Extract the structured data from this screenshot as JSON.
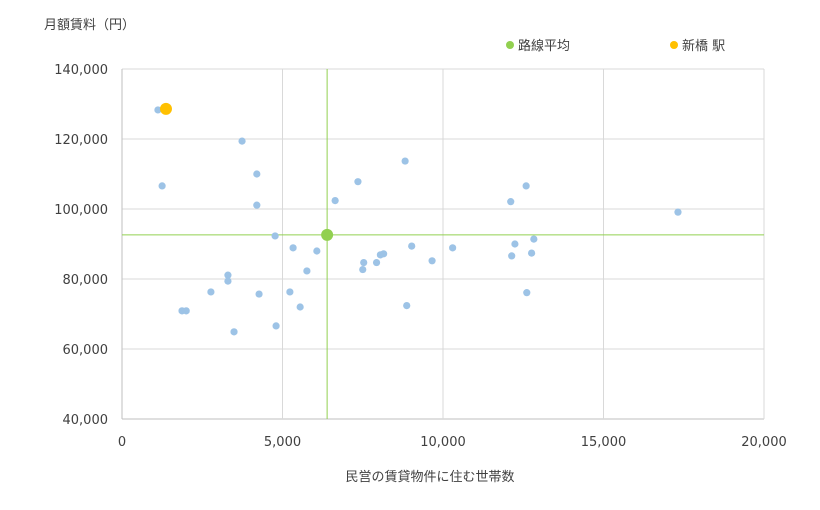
{
  "chart_data": {
    "type": "scatter",
    "title": "",
    "ylabel": "月額賃料（円）",
    "xlabel": "民営の賃貸物件に住む世帯数",
    "xlim": [
      0,
      20000
    ],
    "ylim": [
      40000,
      140000
    ],
    "xticks": [
      0,
      5000,
      10000,
      15000,
      20000
    ],
    "xtick_labels": [
      "0",
      "5,000",
      "10,000",
      "15,000",
      "20,000"
    ],
    "yticks": [
      40000,
      60000,
      80000,
      100000,
      120000,
      140000
    ],
    "ytick_labels": [
      "40,000",
      "60,000",
      "80,000",
      "100,000",
      "120,000",
      "140,000"
    ],
    "grid": true,
    "legend_position": "top-right",
    "colors": {
      "stations": "#9dc3e6",
      "average": "#92d050",
      "highlight": "#ffc000",
      "crosshair": "#92d050",
      "grid": "#d9d9d9"
    },
    "series": [
      {
        "name": "",
        "points": [
          [
            1120,
            128300
          ],
          [
            3740,
            119400
          ],
          [
            1250,
            106600
          ],
          [
            4200,
            110000
          ],
          [
            4200,
            101100
          ],
          [
            4770,
            92300
          ],
          [
            5330,
            88900
          ],
          [
            6070,
            88000
          ],
          [
            5760,
            82300
          ],
          [
            3300,
            81100
          ],
          [
            3300,
            79400
          ],
          [
            2770,
            76300
          ],
          [
            4270,
            75700
          ],
          [
            5230,
            76300
          ],
          [
            5550,
            72000
          ],
          [
            1870,
            70900
          ],
          [
            2000,
            70900
          ],
          [
            3490,
            64900
          ],
          [
            4800,
            66600
          ],
          [
            6640,
            102400
          ],
          [
            7350,
            107800
          ],
          [
            8820,
            113700
          ],
          [
            9025,
            89400
          ],
          [
            10300,
            88900
          ],
          [
            7530,
            84700
          ],
          [
            7500,
            82700
          ],
          [
            7930,
            84700
          ],
          [
            8050,
            86900
          ],
          [
            8150,
            87200
          ],
          [
            9660,
            85200
          ],
          [
            8870,
            72400
          ],
          [
            12110,
            102100
          ],
          [
            12590,
            106600
          ],
          [
            12240,
            90000
          ],
          [
            12830,
            91400
          ],
          [
            12140,
            86600
          ],
          [
            12760,
            87400
          ],
          [
            12610,
            76100
          ],
          [
            17320,
            99100
          ]
        ]
      },
      {
        "name": "路線平均",
        "points": [
          [
            6390,
            92600
          ]
        ]
      },
      {
        "name": "新橋 駅",
        "points": [
          [
            1370,
            128600
          ]
        ]
      }
    ]
  }
}
